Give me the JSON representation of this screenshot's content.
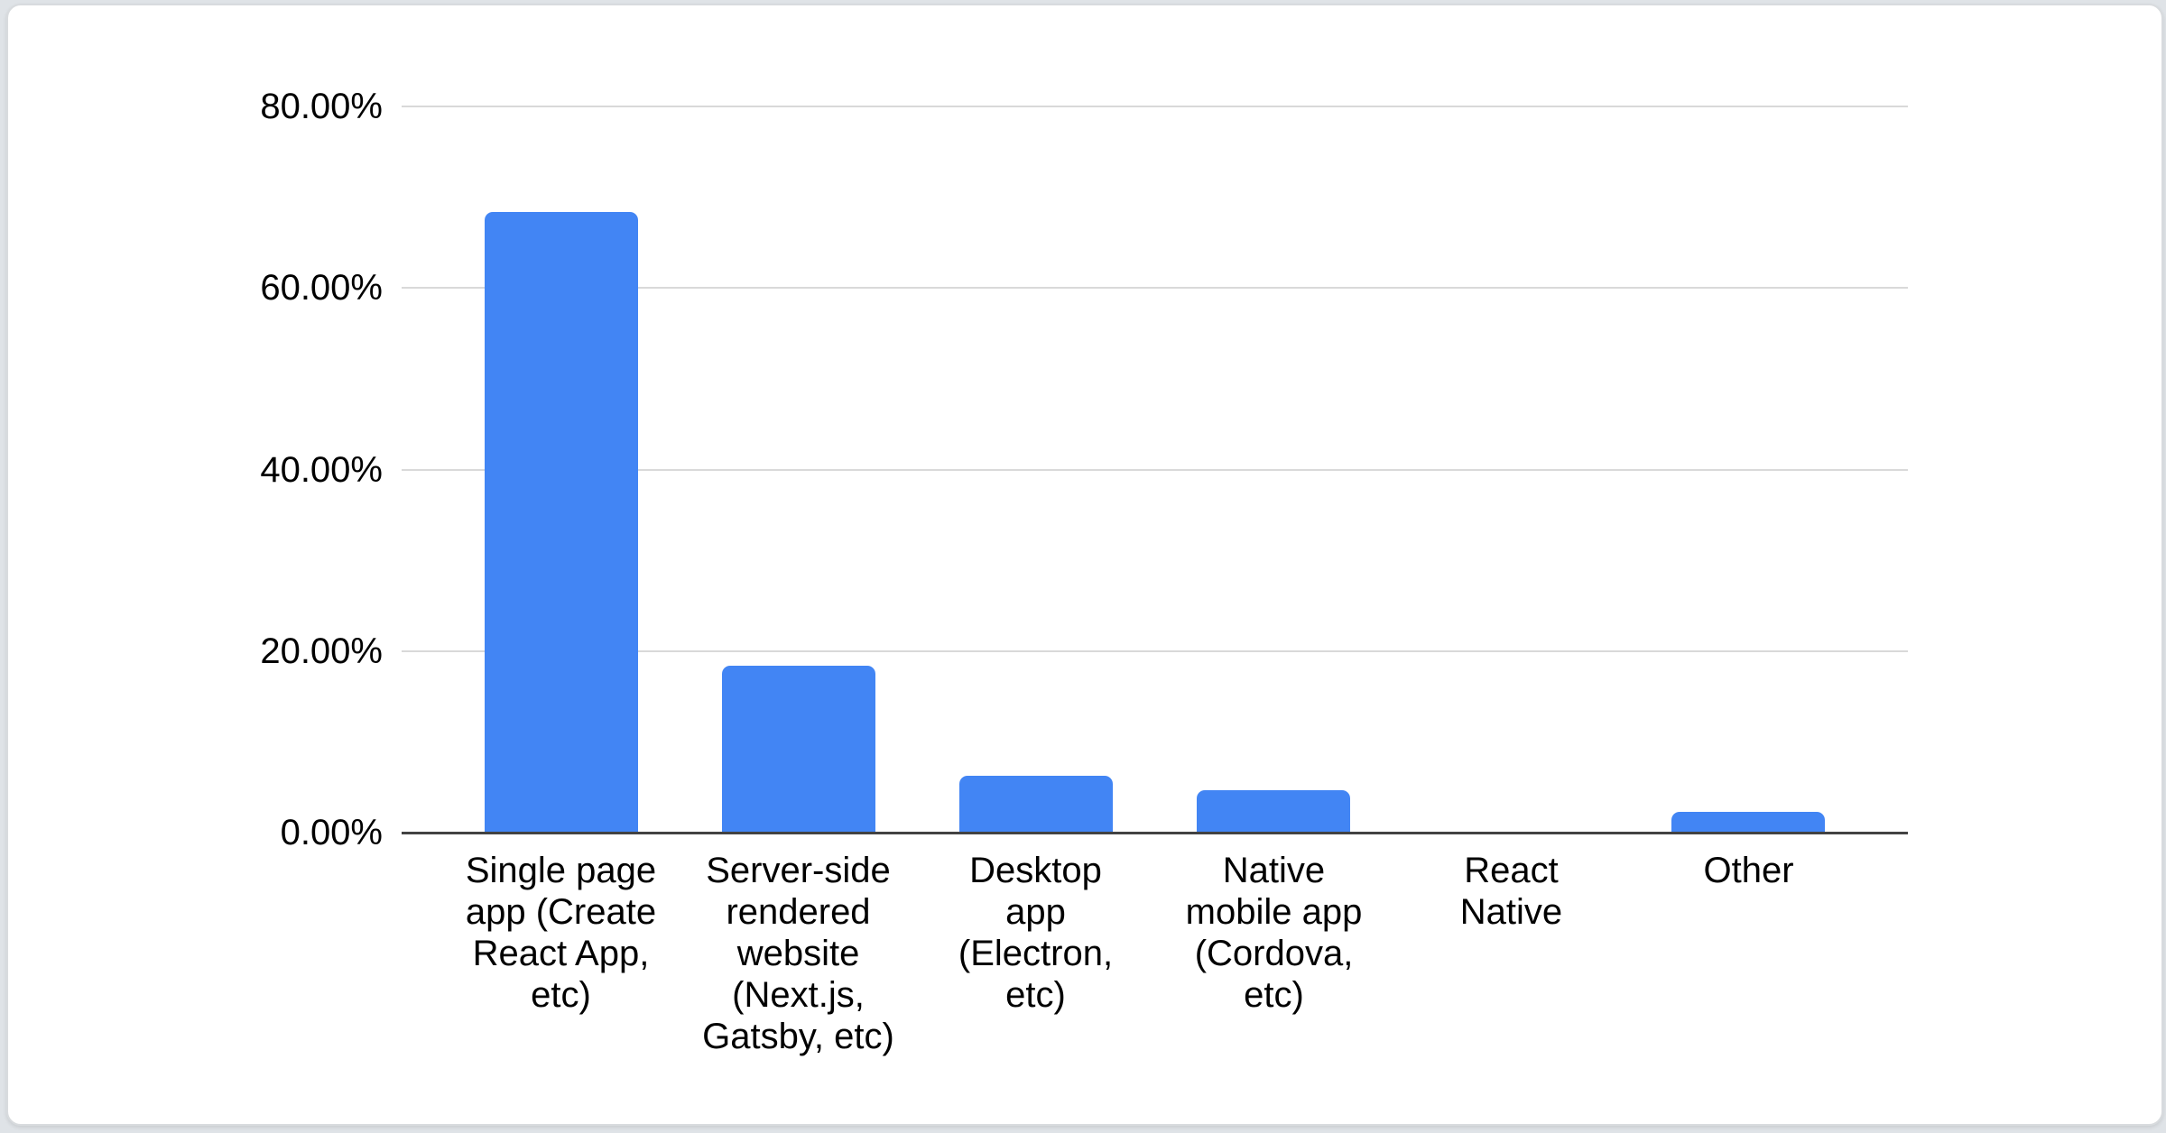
{
  "page": {
    "background": "#dfe3e7"
  },
  "card": {
    "background": "#ffffff",
    "border_color": "#d8dbde"
  },
  "chart_data": {
    "type": "bar",
    "title": "",
    "xlabel": "",
    "ylabel": "",
    "categories": [
      "Single page app (Create React App, etc)",
      "Server-side rendered website (Next.js, Gatsby, etc)",
      "Desktop app (Electron, etc)",
      "Native mobile app (Cordova, etc)",
      "React Native",
      "Other"
    ],
    "category_lines": [
      [
        "Single page",
        "app (Create",
        "React App,",
        "etc)"
      ],
      [
        "Server-side",
        "rendered",
        "website",
        "(Next.js,",
        "Gatsby, etc)"
      ],
      [
        "Desktop",
        "app",
        "(Electron,",
        "etc)"
      ],
      [
        "Native",
        "mobile app",
        "(Cordova,",
        "etc)"
      ],
      [
        "React",
        "Native"
      ],
      [
        "Other"
      ]
    ],
    "values": [
      68.4,
      18.4,
      6.3,
      4.7,
      0.0,
      2.3
    ],
    "value_unit": "%",
    "y_ticks": [
      {
        "value": 0,
        "label": "0.00%"
      },
      {
        "value": 20,
        "label": "20.00%"
      },
      {
        "value": 40,
        "label": "40.00%"
      },
      {
        "value": 60,
        "label": "60.00%"
      },
      {
        "value": 80,
        "label": "80.00%"
      }
    ],
    "ylim": [
      0,
      80
    ],
    "grid": true,
    "legend": "none",
    "bar_color": "#4285f4",
    "axis_color": "#424242",
    "gridline_color": "#d9d9d9",
    "text_color": "#000000"
  }
}
